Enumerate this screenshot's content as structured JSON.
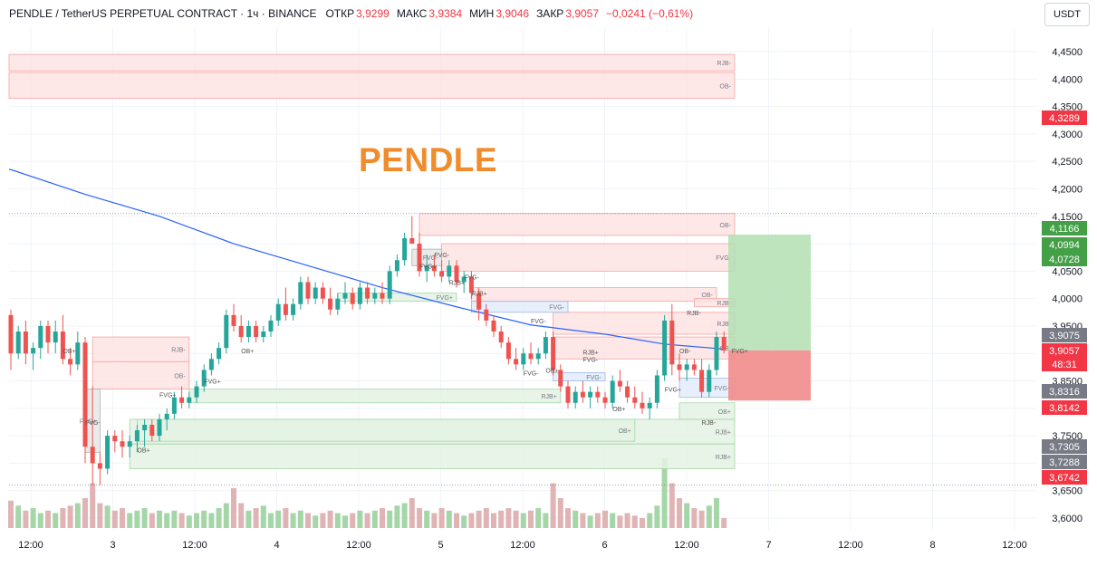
{
  "header": {
    "symbol": "PENDLE / TetherUS PERPETUAL CONTRACT · 1ч · BINANCE",
    "open_label": "ОТКР",
    "open_value": "3,9299",
    "high_label": "МАКС",
    "high_value": "3,9384",
    "low_label": "МИН",
    "low_value": "3,9046",
    "close_label": "ЗАКР",
    "close_value": "3,9057",
    "change": "−0,0241 (−0,61%)"
  },
  "currency_button": "USDT",
  "watermark": "PENDLE",
  "colors": {
    "up": "#26a69a",
    "down": "#ef5350",
    "ma": "#2962ff",
    "zone_red_fill": "#fde3e3",
    "zone_red_stroke": "#f5a3a3",
    "zone_green_fill": "#e3f2e3",
    "zone_green_stroke": "#a5d6a7",
    "zone_blue_fill": "#e3ecfb",
    "zone_grey_fill": "#e6e6e6",
    "target_fill": "#b2dfb2",
    "stop_fill": "#f28b8b",
    "price_tag_red": "#f23645",
    "price_tag_green": "#43a047",
    "price_tag_grey": "#787b86"
  },
  "chart_data": {
    "type": "candlestick",
    "y_axis": {
      "min": 3.6,
      "max": 4.45,
      "step": 0.05,
      "tick_labels": [
        "4,4500",
        "4,4000",
        "4,3500",
        "4,3000",
        "4,2500",
        "4,2000",
        "4,1500",
        "4,1000",
        "4,0500",
        "4,0000",
        "3,9500",
        "3,9000",
        "3,8500",
        "3,8000",
        "3,7500",
        "3,7000",
        "3,6500",
        "3,6000"
      ]
    },
    "x_axis": {
      "tick_labels": [
        "12:00",
        "3",
        "12:00",
        "4",
        "12:00",
        "5",
        "12:00",
        "6",
        "12:00",
        "7",
        "12:00",
        "8",
        "12:00"
      ],
      "tick_hours": [
        12,
        24,
        36,
        48,
        60,
        72,
        84,
        96,
        108,
        120,
        132,
        144,
        156
      ],
      "start_hour": 10,
      "end_hour": 159
    },
    "candles": [
      {
        "o": 3.97,
        "h": 3.98,
        "l": 3.87,
        "c": 3.9
      },
      {
        "o": 3.9,
        "h": 3.95,
        "l": 3.89,
        "c": 3.94
      },
      {
        "o": 3.94,
        "h": 3.96,
        "l": 3.88,
        "c": 3.9
      },
      {
        "o": 3.9,
        "h": 3.92,
        "l": 3.87,
        "c": 3.91
      },
      {
        "o": 3.91,
        "h": 3.96,
        "l": 3.89,
        "c": 3.95
      },
      {
        "o": 3.95,
        "h": 3.96,
        "l": 3.9,
        "c": 3.92
      },
      {
        "o": 3.92,
        "h": 3.96,
        "l": 3.9,
        "c": 3.94
      },
      {
        "o": 3.94,
        "h": 3.97,
        "l": 3.88,
        "c": 3.89
      },
      {
        "o": 3.89,
        "h": 3.91,
        "l": 3.86,
        "c": 3.88
      },
      {
        "o": 3.88,
        "h": 3.94,
        "l": 3.87,
        "c": 3.92
      },
      {
        "o": 3.92,
        "h": 3.93,
        "l": 3.7,
        "c": 3.73
      },
      {
        "o": 3.73,
        "h": 3.84,
        "l": 3.66,
        "c": 3.7
      },
      {
        "o": 3.7,
        "h": 3.72,
        "l": 3.66,
        "c": 3.69
      },
      {
        "o": 3.69,
        "h": 3.76,
        "l": 3.68,
        "c": 3.75
      },
      {
        "o": 3.75,
        "h": 3.76,
        "l": 3.72,
        "c": 3.74
      },
      {
        "o": 3.74,
        "h": 3.76,
        "l": 3.71,
        "c": 3.73
      },
      {
        "o": 3.73,
        "h": 3.75,
        "l": 3.71,
        "c": 3.74
      },
      {
        "o": 3.74,
        "h": 3.77,
        "l": 3.72,
        "c": 3.76
      },
      {
        "o": 3.76,
        "h": 3.78,
        "l": 3.73,
        "c": 3.77
      },
      {
        "o": 3.77,
        "h": 3.78,
        "l": 3.74,
        "c": 3.75
      },
      {
        "o": 3.75,
        "h": 3.79,
        "l": 3.74,
        "c": 3.78
      },
      {
        "o": 3.78,
        "h": 3.8,
        "l": 3.76,
        "c": 3.79
      },
      {
        "o": 3.79,
        "h": 3.83,
        "l": 3.78,
        "c": 3.82
      },
      {
        "o": 3.82,
        "h": 3.84,
        "l": 3.8,
        "c": 3.81
      },
      {
        "o": 3.81,
        "h": 3.83,
        "l": 3.8,
        "c": 3.82
      },
      {
        "o": 3.82,
        "h": 3.85,
        "l": 3.81,
        "c": 3.84
      },
      {
        "o": 3.84,
        "h": 3.88,
        "l": 3.83,
        "c": 3.87
      },
      {
        "o": 3.87,
        "h": 3.9,
        "l": 3.86,
        "c": 3.89
      },
      {
        "o": 3.89,
        "h": 3.92,
        "l": 3.88,
        "c": 3.91
      },
      {
        "o": 3.91,
        "h": 3.98,
        "l": 3.9,
        "c": 3.97
      },
      {
        "o": 3.97,
        "h": 3.99,
        "l": 3.94,
        "c": 3.95
      },
      {
        "o": 3.95,
        "h": 3.97,
        "l": 3.92,
        "c": 3.93
      },
      {
        "o": 3.93,
        "h": 3.96,
        "l": 3.92,
        "c": 3.95
      },
      {
        "o": 3.95,
        "h": 3.96,
        "l": 3.92,
        "c": 3.93
      },
      {
        "o": 3.93,
        "h": 3.95,
        "l": 3.92,
        "c": 3.94
      },
      {
        "o": 3.94,
        "h": 3.97,
        "l": 3.93,
        "c": 3.96
      },
      {
        "o": 3.96,
        "h": 4.0,
        "l": 3.95,
        "c": 3.99
      },
      {
        "o": 3.99,
        "h": 4.02,
        "l": 3.96,
        "c": 3.97
      },
      {
        "o": 3.97,
        "h": 4.0,
        "l": 3.96,
        "c": 3.99
      },
      {
        "o": 3.99,
        "h": 4.04,
        "l": 3.98,
        "c": 4.03
      },
      {
        "o": 4.03,
        "h": 4.04,
        "l": 3.99,
        "c": 4.0
      },
      {
        "o": 4.0,
        "h": 4.03,
        "l": 3.99,
        "c": 4.02
      },
      {
        "o": 4.02,
        "h": 4.03,
        "l": 3.99,
        "c": 4.0
      },
      {
        "o": 4.0,
        "h": 4.02,
        "l": 3.97,
        "c": 3.98
      },
      {
        "o": 3.98,
        "h": 4.01,
        "l": 3.97,
        "c": 4.0
      },
      {
        "o": 4.0,
        "h": 4.03,
        "l": 3.99,
        "c": 4.01
      },
      {
        "o": 4.01,
        "h": 4.02,
        "l": 3.98,
        "c": 3.99
      },
      {
        "o": 3.99,
        "h": 4.03,
        "l": 3.98,
        "c": 4.02
      },
      {
        "o": 4.02,
        "h": 4.03,
        "l": 3.99,
        "c": 4.0
      },
      {
        "o": 4.0,
        "h": 4.02,
        "l": 3.99,
        "c": 4.01
      },
      {
        "o": 4.01,
        "h": 4.03,
        "l": 3.99,
        "c": 4.0
      },
      {
        "o": 4.0,
        "h": 4.06,
        "l": 3.99,
        "c": 4.05
      },
      {
        "o": 4.05,
        "h": 4.08,
        "l": 4.04,
        "c": 4.07
      },
      {
        "o": 4.07,
        "h": 4.12,
        "l": 4.06,
        "c": 4.11
      },
      {
        "o": 4.11,
        "h": 4.15,
        "l": 4.1,
        "c": 4.1
      },
      {
        "o": 4.1,
        "h": 4.12,
        "l": 4.04,
        "c": 4.05
      },
      {
        "o": 4.05,
        "h": 4.08,
        "l": 4.03,
        "c": 4.06
      },
      {
        "o": 4.06,
        "h": 4.08,
        "l": 4.04,
        "c": 4.05
      },
      {
        "o": 4.05,
        "h": 4.07,
        "l": 4.03,
        "c": 4.04
      },
      {
        "o": 4.04,
        "h": 4.07,
        "l": 4.03,
        "c": 4.06
      },
      {
        "o": 4.06,
        "h": 4.07,
        "l": 4.02,
        "c": 4.03
      },
      {
        "o": 4.03,
        "h": 4.05,
        "l": 4.01,
        "c": 4.04
      },
      {
        "o": 4.04,
        "h": 4.05,
        "l": 4.0,
        "c": 4.01
      },
      {
        "o": 4.01,
        "h": 4.02,
        "l": 3.96,
        "c": 3.98
      },
      {
        "o": 3.98,
        "h": 3.99,
        "l": 3.95,
        "c": 3.96
      },
      {
        "o": 3.96,
        "h": 3.97,
        "l": 3.93,
        "c": 3.94
      },
      {
        "o": 3.94,
        "h": 3.95,
        "l": 3.91,
        "c": 3.92
      },
      {
        "o": 3.92,
        "h": 3.93,
        "l": 3.88,
        "c": 3.89
      },
      {
        "o": 3.89,
        "h": 3.91,
        "l": 3.87,
        "c": 3.88
      },
      {
        "o": 3.88,
        "h": 3.91,
        "l": 3.87,
        "c": 3.9
      },
      {
        "o": 3.9,
        "h": 3.92,
        "l": 3.88,
        "c": 3.89
      },
      {
        "o": 3.89,
        "h": 3.91,
        "l": 3.88,
        "c": 3.9
      },
      {
        "o": 3.9,
        "h": 3.94,
        "l": 3.89,
        "c": 3.93
      },
      {
        "o": 3.93,
        "h": 3.94,
        "l": 3.86,
        "c": 3.87
      },
      {
        "o": 3.87,
        "h": 3.88,
        "l": 3.83,
        "c": 3.84
      },
      {
        "o": 3.84,
        "h": 3.85,
        "l": 3.8,
        "c": 3.81
      },
      {
        "o": 3.81,
        "h": 3.84,
        "l": 3.8,
        "c": 3.83
      },
      {
        "o": 3.83,
        "h": 3.85,
        "l": 3.81,
        "c": 3.82
      },
      {
        "o": 3.82,
        "h": 3.84,
        "l": 3.8,
        "c": 3.83
      },
      {
        "o": 3.83,
        "h": 3.84,
        "l": 3.81,
        "c": 3.82
      },
      {
        "o": 3.82,
        "h": 3.83,
        "l": 3.8,
        "c": 3.81
      },
      {
        "o": 3.81,
        "h": 3.86,
        "l": 3.8,
        "c": 3.85
      },
      {
        "o": 3.85,
        "h": 3.87,
        "l": 3.83,
        "c": 3.84
      },
      {
        "o": 3.84,
        "h": 3.85,
        "l": 3.81,
        "c": 3.82
      },
      {
        "o": 3.82,
        "h": 3.84,
        "l": 3.8,
        "c": 3.81
      },
      {
        "o": 3.81,
        "h": 3.83,
        "l": 3.79,
        "c": 3.8
      },
      {
        "o": 3.8,
        "h": 3.82,
        "l": 3.78,
        "c": 3.81
      },
      {
        "o": 3.81,
        "h": 3.87,
        "l": 3.8,
        "c": 3.86
      },
      {
        "o": 3.86,
        "h": 3.97,
        "l": 3.85,
        "c": 3.96
      },
      {
        "o": 3.96,
        "h": 3.99,
        "l": 3.86,
        "c": 3.88
      },
      {
        "o": 3.88,
        "h": 3.9,
        "l": 3.85,
        "c": 3.87
      },
      {
        "o": 3.87,
        "h": 3.89,
        "l": 3.85,
        "c": 3.88
      },
      {
        "o": 3.88,
        "h": 3.89,
        "l": 3.86,
        "c": 3.87
      },
      {
        "o": 3.87,
        "h": 3.89,
        "l": 3.82,
        "c": 3.83
      },
      {
        "o": 3.83,
        "h": 3.88,
        "l": 3.82,
        "c": 3.87
      },
      {
        "o": 3.87,
        "h": 3.94,
        "l": 3.86,
        "c": 3.93
      },
      {
        "o": 3.93,
        "h": 3.94,
        "l": 3.9,
        "c": 3.9057
      }
    ],
    "volume_bars": [
      0.55,
      0.45,
      0.35,
      0.4,
      0.3,
      0.35,
      0.3,
      0.4,
      0.45,
      0.5,
      0.6,
      0.9,
      0.5,
      0.45,
      0.35,
      0.4,
      0.3,
      0.35,
      0.4,
      0.3,
      0.35,
      0.3,
      0.35,
      0.3,
      0.25,
      0.3,
      0.35,
      0.3,
      0.4,
      0.5,
      0.8,
      0.5,
      0.35,
      0.4,
      0.45,
      0.3,
      0.35,
      0.4,
      0.3,
      0.35,
      0.3,
      0.25,
      0.3,
      0.35,
      0.3,
      0.25,
      0.3,
      0.35,
      0.3,
      0.35,
      0.4,
      0.35,
      0.45,
      0.5,
      0.6,
      0.4,
      0.35,
      0.3,
      0.4,
      0.35,
      0.3,
      0.25,
      0.3,
      0.35,
      0.4,
      0.3,
      0.35,
      0.4,
      0.35,
      0.3,
      0.35,
      0.4,
      0.3,
      0.9,
      0.6,
      0.4,
      0.35,
      0.3,
      0.25,
      0.3,
      0.35,
      0.3,
      0.25,
      0.3,
      0.25,
      0.2,
      0.3,
      0.45,
      1.4,
      0.9,
      0.6,
      0.5,
      0.4,
      0.35,
      0.45,
      0.6,
      0.2
    ],
    "ma_line": [
      {
        "i": 0,
        "p": 4.235
      },
      {
        "i": 10,
        "p": 4.19
      },
      {
        "i": 20,
        "p": 4.15
      },
      {
        "i": 30,
        "p": 4.1
      },
      {
        "i": 40,
        "p": 4.06
      },
      {
        "i": 50,
        "p": 4.02
      },
      {
        "i": 60,
        "p": 3.985
      },
      {
        "i": 70,
        "p": 3.952
      },
      {
        "i": 80,
        "p": 3.935
      },
      {
        "i": 88,
        "p": 3.917
      },
      {
        "i": 96,
        "p": 3.908
      }
    ],
    "zones": [
      {
        "kind": "red",
        "i0": 0,
        "i1": 111,
        "p0": 4.415,
        "p1": 4.445,
        "label": "RJB-"
      },
      {
        "kind": "red",
        "i0": 0,
        "i1": 111,
        "p0": 4.365,
        "p1": 4.412,
        "label": "OB-"
      },
      {
        "kind": "red",
        "i0": 11,
        "i1": 24,
        "p0": 3.885,
        "p1": 3.93,
        "label": "RJB-"
      },
      {
        "kind": "red",
        "i0": 11,
        "i1": 24,
        "p0": 3.835,
        "p1": 3.885,
        "label": "OB-"
      },
      {
        "kind": "red",
        "i0": 55,
        "i1": 111,
        "p0": 4.115,
        "p1": 4.155,
        "label": "OB-"
      },
      {
        "kind": "red",
        "i0": 58,
        "i1": 111,
        "p0": 4.05,
        "p1": 4.1,
        "label": "FVG-"
      },
      {
        "kind": "red",
        "i0": 62,
        "i1": 95,
        "p0": 3.995,
        "p1": 4.02,
        "label": "OB-"
      },
      {
        "kind": "red",
        "i0": 73,
        "i1": 100,
        "p0": 3.935,
        "p1": 3.975,
        "label": "RJB-"
      },
      {
        "kind": "red",
        "i0": 73,
        "i1": 100,
        "p0": 3.89,
        "p1": 3.93,
        "label": "OB-"
      },
      {
        "kind": "red",
        "i0": 92,
        "i1": 111,
        "p0": 3.985,
        "p1": 4.0,
        "label": "RJB-"
      },
      {
        "kind": "blue",
        "i0": 62,
        "i1": 75,
        "p0": 3.975,
        "p1": 3.995,
        "label": "FVG-"
      },
      {
        "kind": "blue",
        "i0": 73,
        "i1": 80,
        "p0": 3.85,
        "p1": 3.865,
        "label": "FVG-"
      },
      {
        "kind": "blue",
        "i0": 90,
        "i1": 100,
        "p0": 3.82,
        "p1": 3.855,
        "label": "FVG+"
      },
      {
        "kind": "green",
        "i0": 24,
        "i1": 74,
        "p0": 3.81,
        "p1": 3.835,
        "label": "RJB+"
      },
      {
        "kind": "green",
        "i0": 16,
        "i1": 111,
        "p0": 3.735,
        "p1": 3.78,
        "label": "RJB+"
      },
      {
        "kind": "green",
        "i0": 16,
        "i1": 111,
        "p0": 3.69,
        "p1": 3.735,
        "label": "RJB+"
      },
      {
        "kind": "green",
        "i0": 17,
        "i1": 84,
        "p0": 3.74,
        "p1": 3.78,
        "label": "OB+"
      },
      {
        "kind": "green",
        "i0": 90,
        "i1": 111,
        "p0": 3.78,
        "p1": 3.81,
        "label": "OB+"
      },
      {
        "kind": "green",
        "i0": 44,
        "i1": 60,
        "p0": 3.995,
        "p1": 4.01,
        "label": "FVG+"
      },
      {
        "kind": "grey",
        "i0": 54,
        "i1": 58,
        "p0": 4.06,
        "p1": 4.09,
        "label": "FVG-"
      },
      {
        "kind": "grey",
        "i0": 10,
        "i1": 12,
        "p0": 3.72,
        "p1": 3.835,
        "label": "FVG+"
      }
    ],
    "marker_labels": [
      {
        "text": "OB+",
        "i": 7,
        "p": 3.9
      },
      {
        "text": "FVG-",
        "i": 10,
        "p": 3.77
      },
      {
        "text": "OB+",
        "i": 17,
        "p": 3.72
      },
      {
        "text": "FVG+",
        "i": 20,
        "p": 3.82
      },
      {
        "text": "FVG+",
        "i": 26,
        "p": 3.845
      },
      {
        "text": "OB+",
        "i": 31,
        "p": 3.9
      },
      {
        "text": "FVG-",
        "i": 57,
        "p": 4.075
      },
      {
        "text": "FVG+",
        "i": 55,
        "p": 4.055
      },
      {
        "text": "FVG-",
        "i": 61,
        "p": 4.035
      },
      {
        "text": "RJB+",
        "i": 59,
        "p": 4.025
      },
      {
        "text": "RJB+",
        "i": 62,
        "p": 4.005
      },
      {
        "text": "FVG-",
        "i": 70,
        "p": 3.955
      },
      {
        "text": "FVG-",
        "i": 69,
        "p": 3.86
      },
      {
        "text": "OB+",
        "i": 72,
        "p": 3.865
      },
      {
        "text": "FVG-",
        "i": 77,
        "p": 3.885
      },
      {
        "text": "FVG+",
        "i": 88,
        "p": 3.83
      },
      {
        "text": "OB-",
        "i": 90,
        "p": 3.9
      },
      {
        "text": "RJB-",
        "i": 91,
        "p": 3.97
      },
      {
        "text": "OB+",
        "i": 81,
        "p": 3.795
      },
      {
        "text": "FVG+",
        "i": 97,
        "p": 3.9
      },
      {
        "text": "RJB-",
        "i": 93,
        "p": 3.77
      },
      {
        "text": "RJB+",
        "i": 77,
        "p": 3.898
      }
    ],
    "position": {
      "i0": 98,
      "i1": 108,
      "entry": 3.9057,
      "target": 4.1166,
      "stop": 3.8142
    },
    "dotted_lines": [
      4.155,
      3.66
    ],
    "price_tags": [
      {
        "price": 4.3289,
        "text": "4,3289",
        "color": "red"
      },
      {
        "price": 4.1166,
        "text": "4,1166",
        "color": "green"
      },
      {
        "price": 4.0994,
        "text": "4,0994",
        "color": "green"
      },
      {
        "price": 4.0728,
        "text": "4,0728",
        "color": "green"
      },
      {
        "price": 3.9075,
        "text": "3,9075",
        "color": "grey"
      },
      {
        "price": 3.9057,
        "text": "3,9057",
        "color": "red"
      },
      {
        "price": 3.8316,
        "text": "3,8316",
        "color": "grey"
      },
      {
        "price": 3.8142,
        "text": "3,8142",
        "color": "red"
      },
      {
        "price": 3.7305,
        "text": "3,7305",
        "color": "grey"
      },
      {
        "price": 3.7288,
        "text": "3,7288",
        "color": "grey"
      },
      {
        "price": 3.6742,
        "text": "3,6742",
        "color": "red"
      }
    ],
    "countdown": "48:31"
  }
}
